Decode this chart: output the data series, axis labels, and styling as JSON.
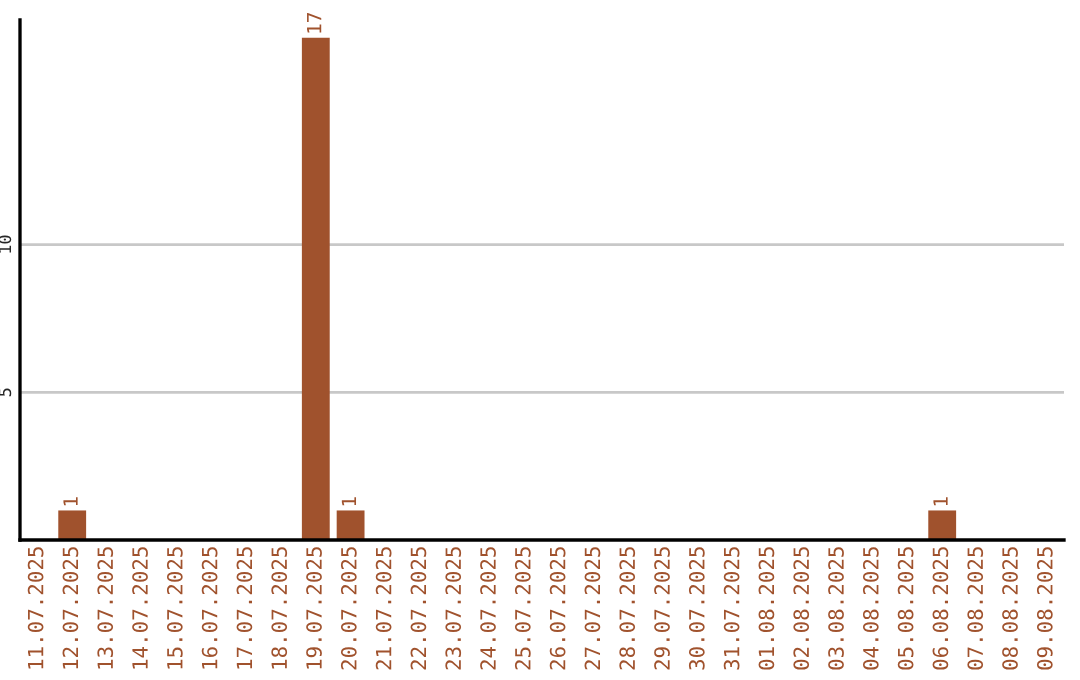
{
  "chart_data": {
    "type": "bar",
    "categories": [
      "11.07.2025",
      "12.07.2025",
      "13.07.2025",
      "14.07.2025",
      "15.07.2025",
      "16.07.2025",
      "17.07.2025",
      "18.07.2025",
      "19.07.2025",
      "20.07.2025",
      "21.07.2025",
      "22.07.2025",
      "23.07.2025",
      "24.07.2025",
      "25.07.2025",
      "26.07.2025",
      "27.07.2025",
      "28.07.2025",
      "29.07.2025",
      "30.07.2025",
      "31.07.2025",
      "01.08.2025",
      "02.08.2025",
      "03.08.2025",
      "04.08.2025",
      "05.08.2025",
      "06.08.2025",
      "07.08.2025",
      "08.08.2025",
      "09.08.2025"
    ],
    "values": [
      0,
      1,
      0,
      0,
      0,
      0,
      0,
      0,
      17,
      1,
      0,
      0,
      0,
      0,
      0,
      0,
      0,
      0,
      0,
      0,
      0,
      0,
      0,
      0,
      0,
      0,
      1,
      0,
      0,
      0
    ],
    "value_labels": [
      null,
      "1",
      null,
      null,
      null,
      null,
      null,
      null,
      "17",
      "1",
      null,
      null,
      null,
      null,
      null,
      null,
      null,
      null,
      null,
      null,
      null,
      null,
      null,
      null,
      null,
      null,
      "1",
      null,
      null,
      null
    ],
    "color": "#a0522d",
    "ylim": [
      0,
      17.6
    ],
    "yticks": [
      5,
      10
    ],
    "grid": "y",
    "legend": false
  }
}
